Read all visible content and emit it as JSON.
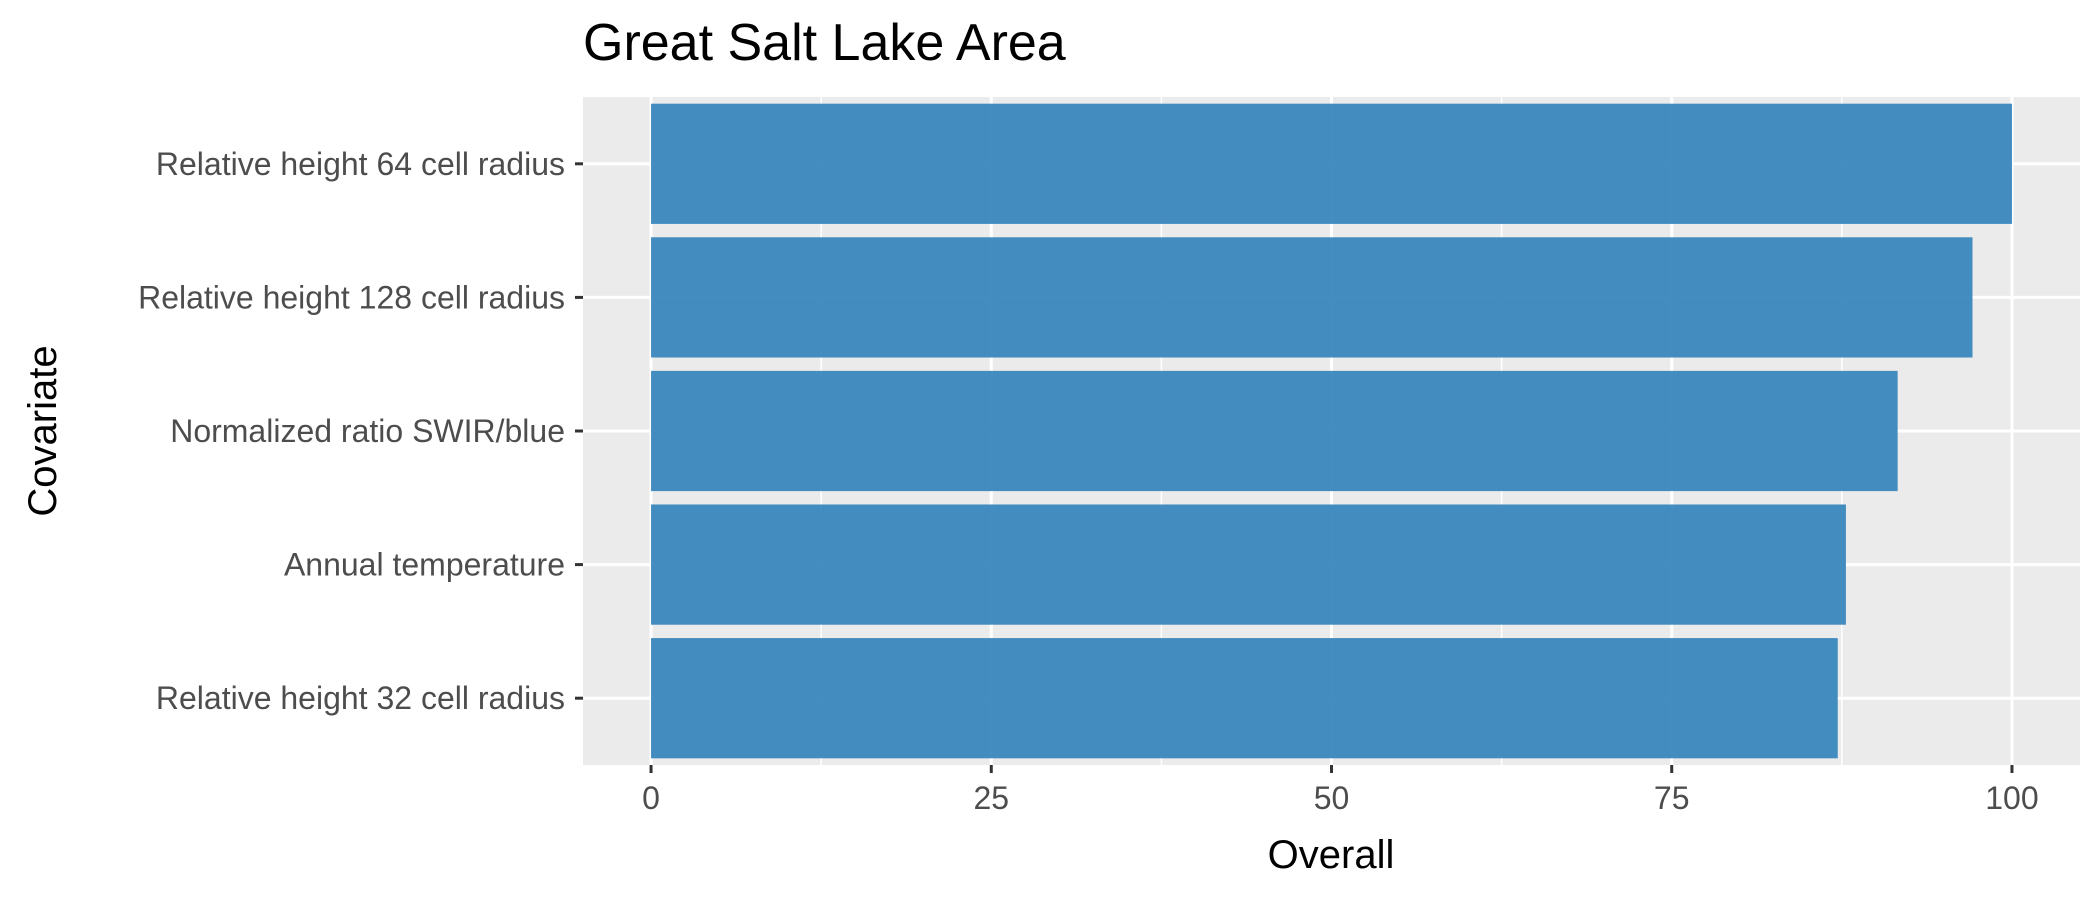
{
  "chart_data": {
    "type": "bar",
    "orientation": "horizontal",
    "title": "Great Salt Lake Area",
    "xlabel": "Overall",
    "ylabel": "Covariate",
    "categories": [
      "Relative height 64 cell radius",
      "Relative height 128 cell radius",
      "Normalized ratio SWIR/blue",
      "Annual temperature",
      "Relative height 32 cell radius"
    ],
    "values": [
      100,
      97.1,
      91.6,
      87.8,
      87.2
    ],
    "xlim": [
      -5,
      105
    ],
    "xticks": [
      0,
      25,
      50,
      75,
      100
    ],
    "xtick_labels": [
      "0",
      "25",
      "50",
      "75",
      "100"
    ],
    "grid": true,
    "colors": {
      "bar": "#3a87be",
      "panel": "#ebebeb",
      "grid": "#ffffff",
      "tick_text": "#4d4d4d"
    }
  }
}
